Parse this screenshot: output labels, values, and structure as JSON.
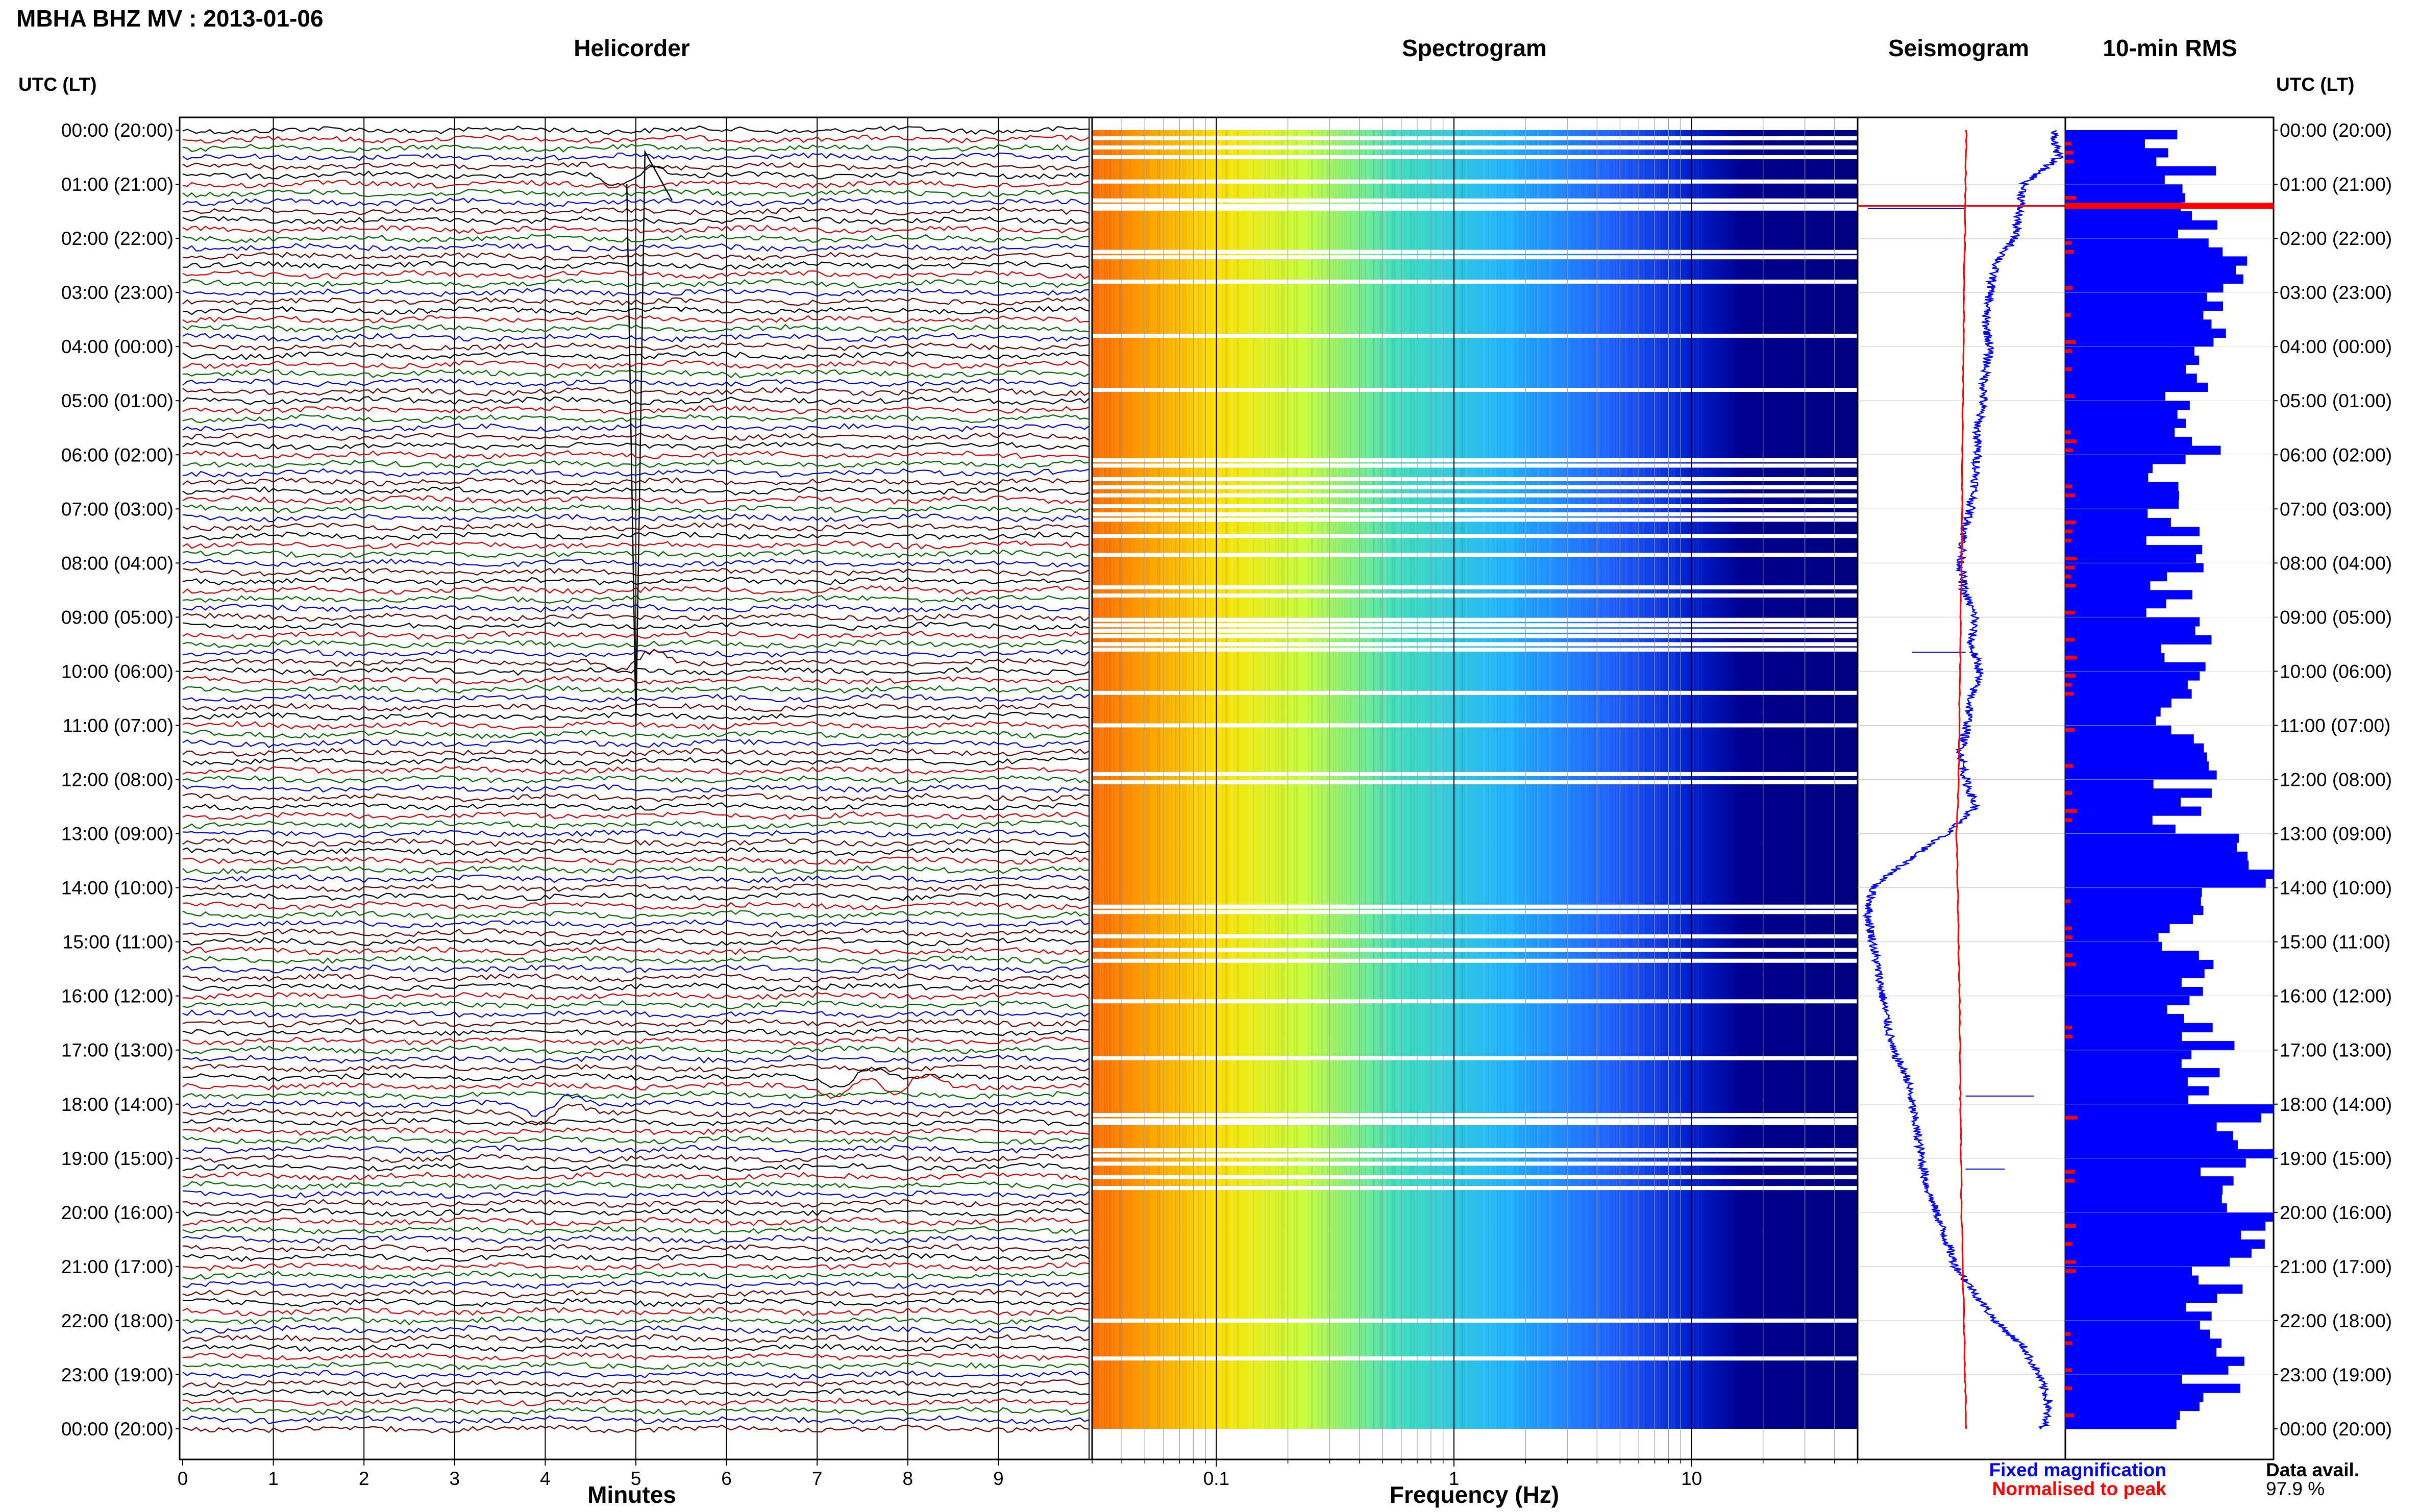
{
  "title": "MBHA BHZ MV : 2013-01-06",
  "panels": {
    "helicorder": "Helicorder",
    "spectrogram": "Spectrogram",
    "seismogram": "Seismogram",
    "rms": "10-min RMS"
  },
  "time_header_left": "UTC (LT)",
  "time_header_right": "UTC (LT)",
  "time_labels": [
    "00:00 (20:00)",
    "01:00 (21:00)",
    "02:00 (22:00)",
    "03:00 (23:00)",
    "04:00 (00:00)",
    "05:00 (01:00)",
    "06:00 (02:00)",
    "07:00 (03:00)",
    "08:00 (04:00)",
    "09:00 (05:00)",
    "10:00 (06:00)",
    "11:00 (07:00)",
    "12:00 (08:00)",
    "13:00 (09:00)",
    "14:00 (10:00)",
    "15:00 (11:00)",
    "16:00 (12:00)",
    "17:00 (13:00)",
    "18:00 (14:00)",
    "19:00 (15:00)",
    "20:00 (16:00)",
    "21:00 (17:00)",
    "22:00 (18:00)",
    "23:00 (19:00)",
    "00:00 (20:00)"
  ],
  "colors": {
    "blue": "#0000ff",
    "red": "#ff0000",
    "trace_cycle": [
      "#000000",
      "#cc0000",
      "#006600",
      "#0000cc",
      "#660000"
    ],
    "spectrogram_low": "#ff7f00",
    "spectrogram_high": "#000080"
  },
  "legend": {
    "fixed": "Fixed magnification",
    "normalised": "Normalised to peak",
    "avail_label": "Data avail.",
    "avail_value": "97.9 %"
  },
  "chart_data": [
    {
      "type": "line",
      "name": "helicorder",
      "xlabel": "Minutes",
      "xticks": [
        "0",
        "1",
        "2",
        "3",
        "4",
        "5",
        "6",
        "7",
        "8",
        "9"
      ],
      "xlim": [
        0,
        10
      ],
      "ylim_hours": [
        0,
        24
      ],
      "rows_per_hour": 6,
      "events_minutes_hour": [
        [
          0.8,
          5.0
        ],
        [
          9.8,
          5.0
        ],
        [
          17.6,
          7.4
        ],
        [
          17.7,
          8.0
        ],
        [
          18.1,
          4.1
        ]
      ]
    },
    {
      "type": "heatmap",
      "name": "spectrogram",
      "xlabel": "Frequency (Hz)",
      "xticks": [
        "0.1",
        "1",
        "10"
      ],
      "xscale": "log",
      "xlim_hz": [
        0.03,
        50
      ],
      "gap_hours": [
        0.15,
        0.32,
        0.5,
        0.95,
        1.3,
        1.4,
        1.45,
        2.25,
        2.35,
        2.8,
        3.8,
        4.8,
        6.1,
        6.2,
        6.45,
        6.6,
        6.75,
        6.95,
        7.1,
        7.2,
        7.5,
        7.85,
        8.45,
        8.6,
        9.05,
        9.15,
        9.25,
        9.35,
        9.5,
        9.6,
        10.4,
        11.0,
        11.9,
        12.05,
        14.35,
        14.45,
        14.9,
        15.15,
        15.35,
        16.1,
        17.15,
        18.2,
        18.3,
        18.35,
        18.85,
        18.95,
        19.1,
        19.35,
        19.55,
        22.0,
        22.7
      ]
    },
    {
      "type": "line",
      "name": "seismogram",
      "series": [
        {
          "name": "Fixed magnification",
          "hours": [
            0,
            0.5,
            1,
            1.5,
            2,
            2.5,
            3,
            3.5,
            4,
            4.5,
            5,
            5.5,
            6,
            6.5,
            7,
            7.5,
            8,
            8.5,
            9,
            9.5,
            10,
            10.5,
            11,
            11.5,
            12,
            12.5,
            13,
            13.5,
            14,
            14.5,
            15,
            15.5,
            16,
            16.5,
            17,
            17.5,
            18,
            18.5,
            19,
            19.5,
            20,
            20.5,
            21,
            21.5,
            22,
            22.5,
            23,
            23.5,
            24
          ],
          "values": [
            0.9,
            0.95,
            0.6,
            0.55,
            0.5,
            0.3,
            0.25,
            0.2,
            0.25,
            0.2,
            0.18,
            0.12,
            0.12,
            0.1,
            0.05,
            -0.02,
            -0.05,
            -0.02,
            0.1,
            0.05,
            0.15,
            0.05,
            0.02,
            -0.05,
            0.0,
            0.1,
            -0.2,
            -0.6,
            -0.95,
            -1.0,
            -0.95,
            -0.9,
            -0.85,
            -0.8,
            -0.75,
            -0.6,
            -0.55,
            -0.5,
            -0.45,
            -0.4,
            -0.3,
            -0.2,
            -0.1,
            0.1,
            0.3,
            0.6,
            0.75,
            0.85,
            0.8
          ]
        },
        {
          "name": "Normalised to peak",
          "hours": [
            0,
            4,
            8,
            12,
            13,
            16,
            20,
            24
          ],
          "values": [
            0.05,
            0.02,
            0.0,
            -0.03,
            -0.05,
            -0.02,
            0.0,
            0.05
          ]
        }
      ]
    },
    {
      "type": "bar",
      "name": "10-min RMS",
      "orientation": "horizontal",
      "bin_minutes": 10,
      "hourly_level": [
        0.55,
        0.6,
        0.85,
        0.6,
        0.55,
        0.6,
        0.52,
        0.55,
        0.5,
        0.55,
        0.6,
        0.6,
        0.55,
        0.95,
        0.6,
        0.6,
        0.65,
        0.7,
        0.9,
        0.75,
        0.85,
        0.7,
        0.7,
        0.7
      ],
      "spike_hour": 1.4
    }
  ]
}
